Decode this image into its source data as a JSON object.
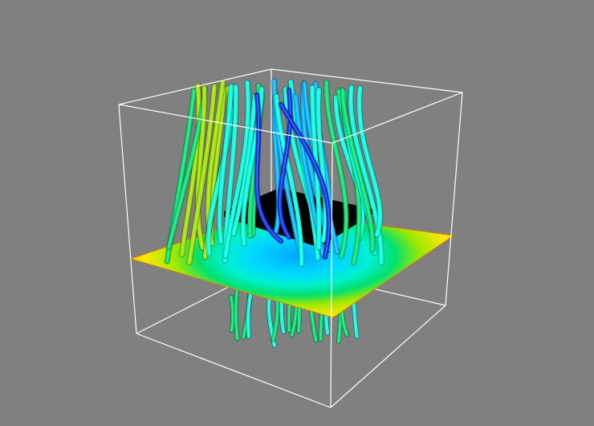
{
  "scene": {
    "background_color": "#808080",
    "bounding_box_color": "#ffffff",
    "obstacle_color": "#000000",
    "colormap": [
      "#0a2fe0",
      "#00b4ff",
      "#00ffe0",
      "#00e070",
      "#a0e000",
      "#ffe000",
      "#ffa000",
      "#ff7000"
    ],
    "streamline_count": 34
  }
}
